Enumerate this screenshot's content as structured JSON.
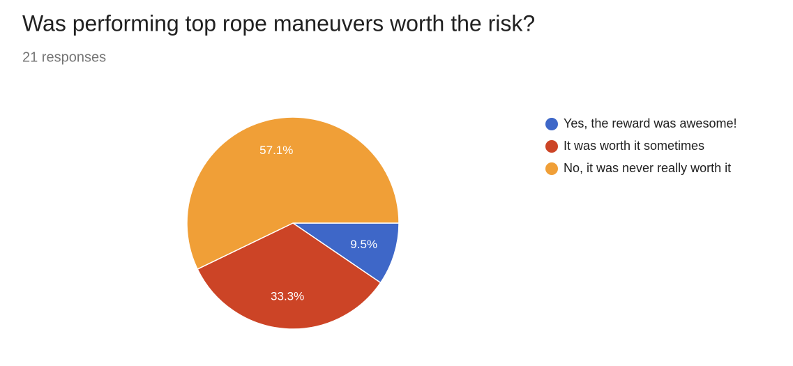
{
  "chart_data": {
    "type": "pie",
    "title": "Was performing top rope maneuvers worth the risk?",
    "subtitle": "21 responses",
    "categories": [
      "Yes, the reward was awesome!",
      "It was worth it sometimes",
      "No, it was never really worth it"
    ],
    "values": [
      9.5,
      33.3,
      57.1
    ],
    "value_labels": [
      "9.5%",
      "33.3%",
      "57.1%"
    ],
    "colors": [
      "#3e67c8",
      "#cc4426",
      "#f09f37"
    ],
    "legend": "right"
  }
}
